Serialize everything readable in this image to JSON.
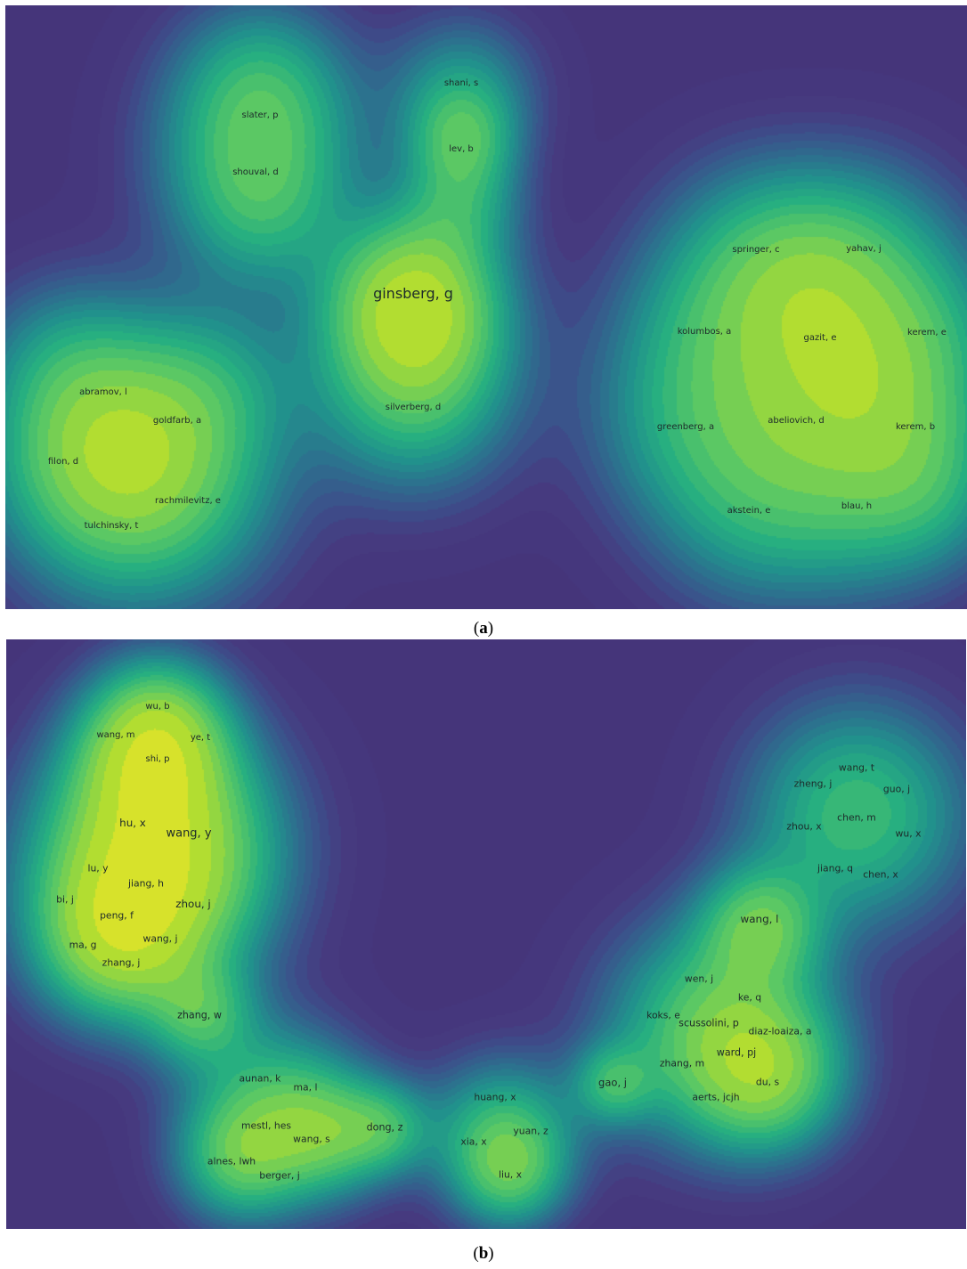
{
  "palette": {
    "background": "#45357a",
    "low": "#31688e",
    "mid": "#21908d",
    "high": "#5dc863",
    "peak": "#fde725"
  },
  "panels": [
    {
      "id": "a",
      "caption": {
        "open": "(",
        "letter": "a",
        "close": ")"
      },
      "nodes": [
        {
          "label": "ginsberg, g",
          "weight": 1.0
        },
        {
          "label": "lev, b",
          "weight": 0.55
        },
        {
          "label": "shani, s",
          "weight": 0.4
        },
        {
          "label": "slater, p",
          "weight": 0.4
        },
        {
          "label": "shouval, d",
          "weight": 0.4
        },
        {
          "label": "silverberg, d",
          "weight": 0.45
        },
        {
          "label": "abramov, l",
          "weight": 0.35
        },
        {
          "label": "goldfarb, a",
          "weight": 0.35
        },
        {
          "label": "filon, d",
          "weight": 0.35
        },
        {
          "label": "rachmilevitz, e",
          "weight": 0.35
        },
        {
          "label": "tulchinsky, t",
          "weight": 0.35
        },
        {
          "label": "springer, c",
          "weight": 0.4
        },
        {
          "label": "yahav, j",
          "weight": 0.4
        },
        {
          "label": "kolumbos, a",
          "weight": 0.4
        },
        {
          "label": "gazit, e",
          "weight": 0.4
        },
        {
          "label": "kerem, e",
          "weight": 0.4
        },
        {
          "label": "greenberg, a",
          "weight": 0.4
        },
        {
          "label": "abeliovich, d",
          "weight": 0.4
        },
        {
          "label": "kerem, b",
          "weight": 0.4
        },
        {
          "label": "akstein, e",
          "weight": 0.4
        },
        {
          "label": "blau, h",
          "weight": 0.4
        }
      ]
    },
    {
      "id": "b",
      "caption": {
        "open": "(",
        "letter": "b",
        "close": ")"
      },
      "nodes": [
        {
          "label": "wu, b",
          "weight": 0.6
        },
        {
          "label": "wang, m",
          "weight": 0.6
        },
        {
          "label": "ye, t",
          "weight": 0.6
        },
        {
          "label": "shi, p",
          "weight": 0.6
        },
        {
          "label": "hu, x",
          "weight": 0.85
        },
        {
          "label": "wang, y",
          "weight": 1.0
        },
        {
          "label": "lu, y",
          "weight": 0.7
        },
        {
          "label": "jiang, h",
          "weight": 0.7
        },
        {
          "label": "bi, j",
          "weight": 0.7
        },
        {
          "label": "zhou, j",
          "weight": 0.85
        },
        {
          "label": "peng, f",
          "weight": 0.7
        },
        {
          "label": "wang, j",
          "weight": 0.7
        },
        {
          "label": "ma, g",
          "weight": 0.7
        },
        {
          "label": "zhang, j",
          "weight": 0.7
        },
        {
          "label": "zhang, w",
          "weight": 0.75
        },
        {
          "label": "aunan, k",
          "weight": 0.7
        },
        {
          "label": "ma, l",
          "weight": 0.7
        },
        {
          "label": "mestl, hes",
          "weight": 0.7
        },
        {
          "label": "wang, s",
          "weight": 0.7
        },
        {
          "label": "alnes, lwh",
          "weight": 0.7
        },
        {
          "label": "berger, j",
          "weight": 0.7
        },
        {
          "label": "dong, z",
          "weight": 0.75
        },
        {
          "label": "huang, x",
          "weight": 0.7
        },
        {
          "label": "yuan, z",
          "weight": 0.7
        },
        {
          "label": "xia, x",
          "weight": 0.7
        },
        {
          "label": "liu, x",
          "weight": 0.7
        },
        {
          "label": "wang, t",
          "weight": 0.7
        },
        {
          "label": "zheng, j",
          "weight": 0.7
        },
        {
          "label": "guo, j",
          "weight": 0.7
        },
        {
          "label": "chen, m",
          "weight": 0.7
        },
        {
          "label": "zhou, x",
          "weight": 0.7
        },
        {
          "label": "wu, x",
          "weight": 0.7
        },
        {
          "label": "jiang, q",
          "weight": 0.7
        },
        {
          "label": "chen, x",
          "weight": 0.7
        },
        {
          "label": "wang, l",
          "weight": 0.85
        },
        {
          "label": "wen, j",
          "weight": 0.7
        },
        {
          "label": "ke, q",
          "weight": 0.7
        },
        {
          "label": "koks, e",
          "weight": 0.7
        },
        {
          "label": "scussolini, p",
          "weight": 0.75
        },
        {
          "label": "diaz-loaiza, a",
          "weight": 0.7
        },
        {
          "label": "ward, pj",
          "weight": 0.75
        },
        {
          "label": "zhang, m",
          "weight": 0.7
        },
        {
          "label": "du, s",
          "weight": 0.7
        },
        {
          "label": "aerts, jcjh",
          "weight": 0.7
        },
        {
          "label": "gao, j",
          "weight": 0.8
        }
      ]
    }
  ]
}
